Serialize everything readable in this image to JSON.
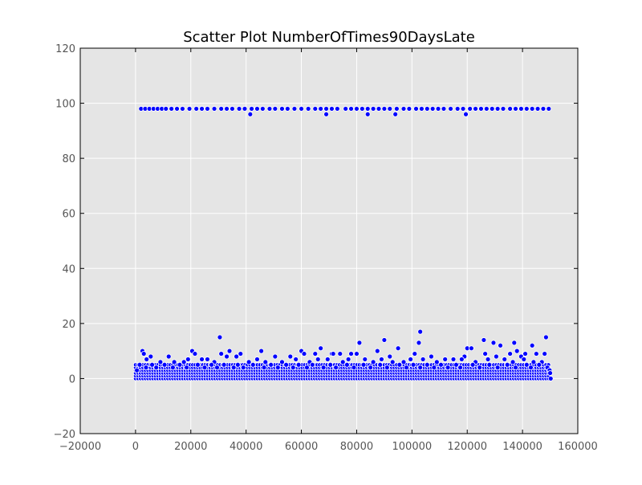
{
  "chart_data": {
    "type": "scatter",
    "title": "Scatter Plot NumberOfTimes90DaysLate",
    "xlabel": "",
    "ylabel": "",
    "xlim": [
      -20000,
      160000
    ],
    "ylim": [
      -20,
      120
    ],
    "xticks": [
      -20000,
      0,
      20000,
      40000,
      60000,
      80000,
      100000,
      120000,
      140000,
      160000
    ],
    "yticks": [
      -20,
      0,
      20,
      40,
      60,
      80,
      100,
      120
    ],
    "xtick_labels": [
      "−20000",
      "0",
      "20000",
      "40000",
      "60000",
      "80000",
      "100000",
      "120000",
      "140000",
      "160000"
    ],
    "ytick_labels": [
      "−20",
      "0",
      "20",
      "40",
      "60",
      "80",
      "100",
      "120"
    ],
    "grid": true,
    "background_color": "#e5e5e5",
    "marker_color": "#0000ff",
    "marker_edge_color": "#ffffff",
    "series": [
      {
        "points": [
          [
            2000,
            98
          ],
          [
            3500,
            98
          ],
          [
            5000,
            98
          ],
          [
            6500,
            98
          ],
          [
            8000,
            98
          ],
          [
            9500,
            98
          ],
          [
            11000,
            98
          ],
          [
            13000,
            98
          ],
          [
            15000,
            98
          ],
          [
            17000,
            98
          ],
          [
            19500,
            98
          ],
          [
            22000,
            98
          ],
          [
            24000,
            98
          ],
          [
            26000,
            98
          ],
          [
            28500,
            98
          ],
          [
            31000,
            98
          ],
          [
            33000,
            98
          ],
          [
            35000,
            98
          ],
          [
            37500,
            98
          ],
          [
            39500,
            98
          ],
          [
            42000,
            98
          ],
          [
            44000,
            98
          ],
          [
            46000,
            98
          ],
          [
            48500,
            98
          ],
          [
            50500,
            98
          ],
          [
            53000,
            98
          ],
          [
            55000,
            98
          ],
          [
            57500,
            98
          ],
          [
            60000,
            98
          ],
          [
            62500,
            98
          ],
          [
            65000,
            98
          ],
          [
            67000,
            98
          ],
          [
            69000,
            98
          ],
          [
            71000,
            98
          ],
          [
            73000,
            98
          ],
          [
            76000,
            98
          ],
          [
            78000,
            98
          ],
          [
            80000,
            98
          ],
          [
            82000,
            98
          ],
          [
            84000,
            98
          ],
          [
            86000,
            98
          ],
          [
            88000,
            98
          ],
          [
            90000,
            98
          ],
          [
            92000,
            98
          ],
          [
            94500,
            98
          ],
          [
            97000,
            98
          ],
          [
            99000,
            98
          ],
          [
            101500,
            98
          ],
          [
            103500,
            98
          ],
          [
            105500,
            98
          ],
          [
            107500,
            98
          ],
          [
            109500,
            98
          ],
          [
            111500,
            98
          ],
          [
            114000,
            98
          ],
          [
            116500,
            98
          ],
          [
            118500,
            98
          ],
          [
            121000,
            98
          ],
          [
            123000,
            98
          ],
          [
            125000,
            98
          ],
          [
            127000,
            98
          ],
          [
            129000,
            98
          ],
          [
            131000,
            98
          ],
          [
            133000,
            98
          ],
          [
            135500,
            98
          ],
          [
            137500,
            98
          ],
          [
            139500,
            98
          ],
          [
            141500,
            98
          ],
          [
            143500,
            98
          ],
          [
            145500,
            98
          ],
          [
            147500,
            98
          ],
          [
            149500,
            98
          ],
          [
            41500,
            96
          ],
          [
            69000,
            96
          ],
          [
            84000,
            96
          ],
          [
            94000,
            96
          ],
          [
            119500,
            96
          ],
          [
            30500,
            15
          ],
          [
            103000,
            17
          ],
          [
            148500,
            15
          ],
          [
            90000,
            14
          ],
          [
            126000,
            14
          ],
          [
            81000,
            13
          ],
          [
            102500,
            13
          ],
          [
            129500,
            13
          ],
          [
            132000,
            12
          ],
          [
            137000,
            13
          ],
          [
            143500,
            12
          ],
          [
            2500,
            10
          ],
          [
            20500,
            10
          ],
          [
            34000,
            10
          ],
          [
            45500,
            10
          ],
          [
            60000,
            10
          ],
          [
            67000,
            11
          ],
          [
            95000,
            11
          ],
          [
            120000,
            11
          ],
          [
            121500,
            11
          ],
          [
            138000,
            10
          ],
          [
            141000,
            9
          ],
          [
            3000,
            9
          ],
          [
            21500,
            9
          ],
          [
            31000,
            9
          ],
          [
            38000,
            9
          ],
          [
            56000,
            8
          ],
          [
            61000,
            9
          ],
          [
            65000,
            9
          ],
          [
            71000,
            9
          ],
          [
            71500,
            9
          ],
          [
            74000,
            9
          ],
          [
            78000,
            9
          ],
          [
            80000,
            9
          ],
          [
            87500,
            10
          ],
          [
            92000,
            8
          ],
          [
            101000,
            9
          ],
          [
            107000,
            8
          ],
          [
            119000,
            8
          ],
          [
            126500,
            9
          ],
          [
            130500,
            8
          ],
          [
            135500,
            9
          ],
          [
            139500,
            8
          ],
          [
            145000,
            9
          ],
          [
            148000,
            9
          ],
          [
            4000,
            7
          ],
          [
            5500,
            8
          ],
          [
            9000,
            6
          ],
          [
            12000,
            8
          ],
          [
            14000,
            6
          ],
          [
            17500,
            6
          ],
          [
            19000,
            7
          ],
          [
            24000,
            7
          ],
          [
            26000,
            7
          ],
          [
            28500,
            6
          ],
          [
            33000,
            8
          ],
          [
            36500,
            8
          ],
          [
            41000,
            6
          ],
          [
            44000,
            7
          ],
          [
            47000,
            6
          ],
          [
            50500,
            8
          ],
          [
            53000,
            6
          ],
          [
            58000,
            7
          ],
          [
            63000,
            6
          ],
          [
            66000,
            7
          ],
          [
            69500,
            7
          ],
          [
            75000,
            6
          ],
          [
            77000,
            7
          ],
          [
            83000,
            7
          ],
          [
            86000,
            6
          ],
          [
            89000,
            7
          ],
          [
            93000,
            6
          ],
          [
            97000,
            6
          ],
          [
            99500,
            7
          ],
          [
            104000,
            7
          ],
          [
            109000,
            6
          ],
          [
            112000,
            7
          ],
          [
            115000,
            7
          ],
          [
            118000,
            7
          ],
          [
            123000,
            6
          ],
          [
            127500,
            7
          ],
          [
            133500,
            7
          ],
          [
            136500,
            6
          ],
          [
            140500,
            7
          ],
          [
            144000,
            6
          ],
          [
            147000,
            6
          ],
          [
            500,
            3
          ],
          [
            1500,
            5
          ],
          [
            3800,
            4
          ],
          [
            6000,
            5
          ],
          [
            7500,
            4
          ],
          [
            10500,
            5
          ],
          [
            13500,
            4
          ],
          [
            16000,
            5
          ],
          [
            18500,
            4
          ],
          [
            22500,
            5
          ],
          [
            25000,
            4
          ],
          [
            27500,
            5
          ],
          [
            29500,
            4
          ],
          [
            32000,
            5
          ],
          [
            35500,
            4
          ],
          [
            37000,
            5
          ],
          [
            39000,
            4
          ],
          [
            42500,
            5
          ],
          [
            46500,
            4
          ],
          [
            49000,
            5
          ],
          [
            51500,
            4
          ],
          [
            54500,
            5
          ],
          [
            57000,
            4
          ],
          [
            59000,
            5
          ],
          [
            62000,
            4
          ],
          [
            64000,
            5
          ],
          [
            68000,
            4
          ],
          [
            70500,
            5
          ],
          [
            72500,
            4
          ],
          [
            76500,
            5
          ],
          [
            79000,
            4
          ],
          [
            82500,
            5
          ],
          [
            85000,
            4
          ],
          [
            88500,
            5
          ],
          [
            91000,
            4
          ],
          [
            95500,
            5
          ],
          [
            98000,
            4
          ],
          [
            100500,
            5
          ],
          [
            103000,
            4
          ],
          [
            105500,
            5
          ],
          [
            108000,
            4
          ],
          [
            110500,
            5
          ],
          [
            113000,
            4
          ],
          [
            116000,
            5
          ],
          [
            117500,
            4
          ],
          [
            122000,
            5
          ],
          [
            124500,
            4
          ],
          [
            128000,
            5
          ],
          [
            131000,
            4
          ],
          [
            134500,
            5
          ],
          [
            137500,
            4
          ],
          [
            141500,
            5
          ],
          [
            143000,
            4
          ],
          [
            146000,
            5
          ],
          [
            149000,
            4
          ],
          [
            149800,
            3
          ],
          [
            150000,
            2
          ],
          [
            150200,
            0
          ]
        ]
      }
    ],
    "dense_band": {
      "x_from": 0,
      "x_to": 150000,
      "y_values": [
        0,
        1,
        2,
        3,
        4,
        5
      ]
    }
  }
}
